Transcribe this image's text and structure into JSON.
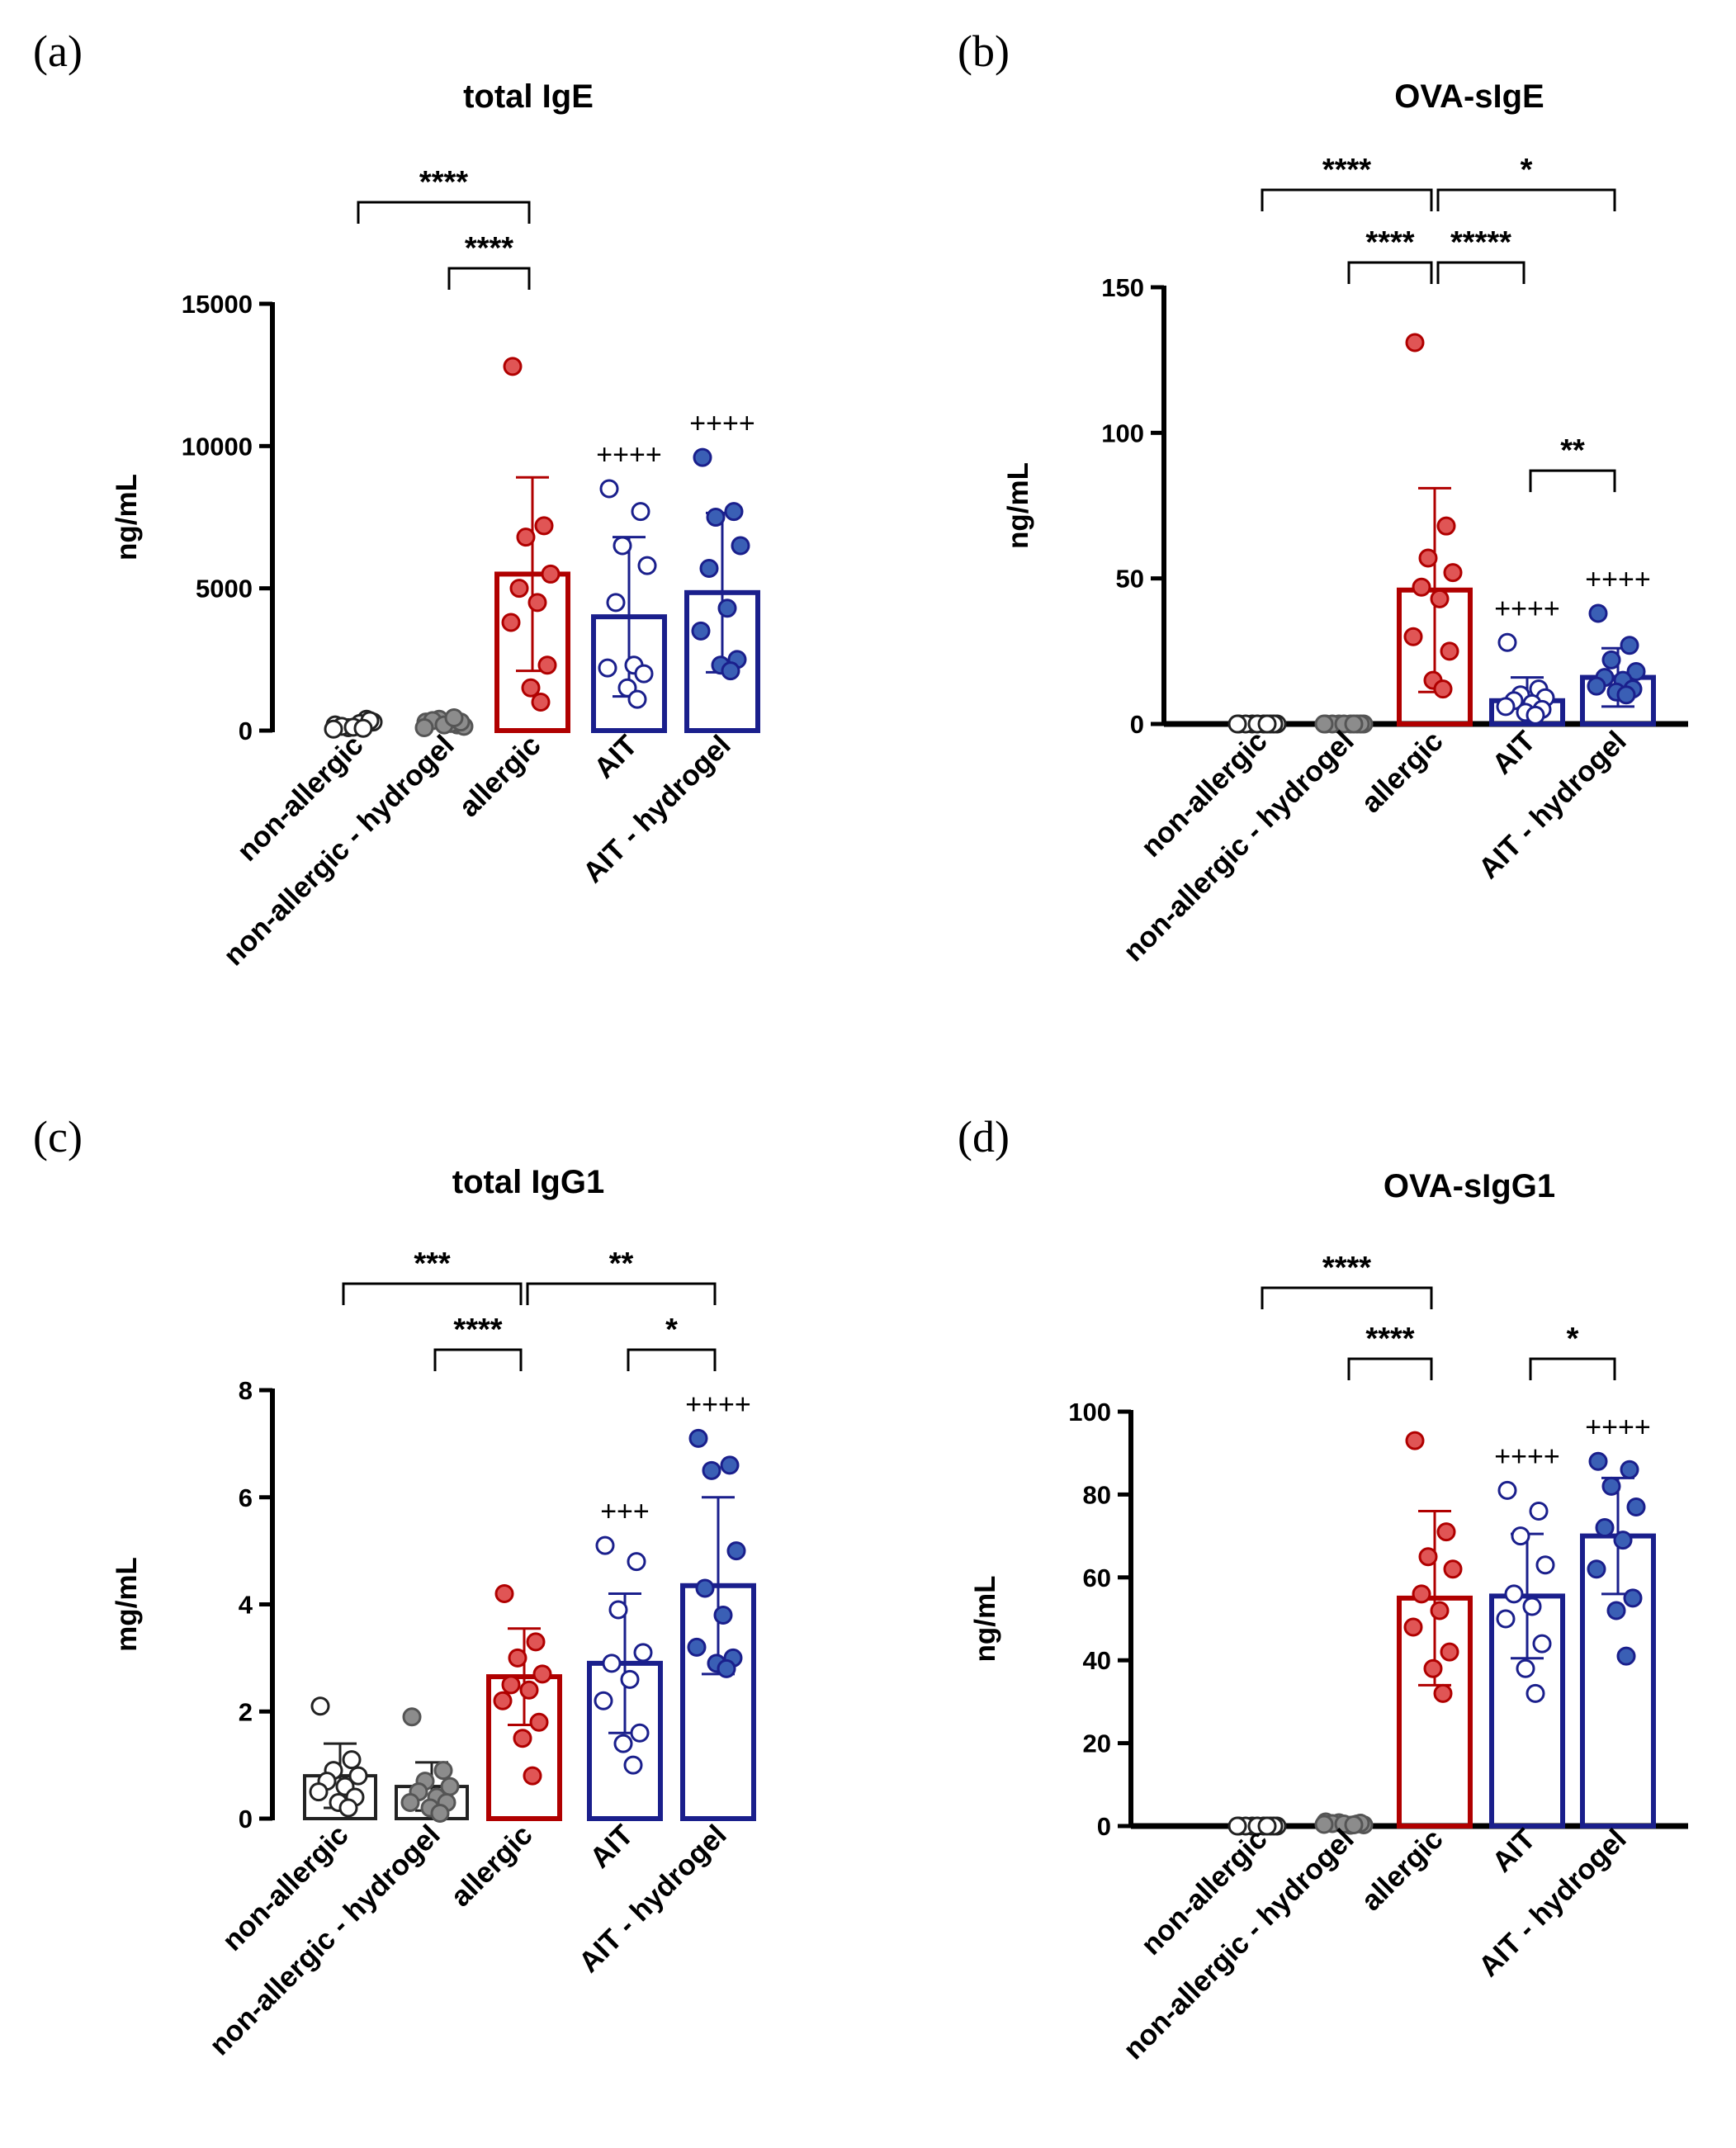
{
  "figure": {
    "categories": [
      "non-allergic",
      "non-allergic - hydrogel",
      "allergic",
      "AIT",
      "AIT - hydrogel"
    ],
    "colors": {
      "non_allergic": "#ffffff",
      "non_allergic_hydrogel": "#8c8c8c",
      "allergic": "#b00000",
      "allergic_point": "#e05555",
      "ait": "#1a1f8c",
      "ait_hydrogel_point": "#3a5fb5",
      "axis": "#000000"
    }
  },
  "chart_data": [
    {
      "panel": "(a)",
      "type": "bar",
      "title": "total IgE",
      "ylabel": "ng/mL",
      "ylim": [
        0,
        15000
      ],
      "yticks": [
        0,
        5000,
        10000,
        15000
      ],
      "categories": [
        "non-allergic",
        "non-allergic - hydrogel",
        "allergic",
        "AIT",
        "AIT - hydrogel"
      ],
      "bars": [
        null,
        null,
        5500,
        4000,
        4850
      ],
      "errors": [
        null,
        null,
        3400,
        2800,
        2800
      ],
      "points": [
        [
          200,
          400,
          100,
          300,
          150,
          250,
          50,
          350,
          120,
          80
        ],
        [
          300,
          200,
          400,
          150,
          350,
          250,
          100,
          300,
          200,
          450
        ],
        [
          12800,
          7200,
          6800,
          5500,
          5000,
          4500,
          3800,
          2300,
          1500,
          1000
        ],
        [
          8500,
          7700,
          6500,
          5800,
          4500,
          2300,
          2200,
          2000,
          1500,
          1100
        ],
        [
          9600,
          7700,
          7500,
          6500,
          5700,
          4300,
          3500,
          2500,
          2300,
          2100
        ]
      ],
      "signs": [
        "",
        "",
        "",
        "++++",
        "++++"
      ],
      "brackets": [
        {
          "from": 0,
          "to": 2,
          "label": "****",
          "level": 2
        },
        {
          "from": 1,
          "to": 2,
          "label": "****",
          "level": 1
        }
      ]
    },
    {
      "panel": "(b)",
      "type": "bar",
      "title": "OVA-sIgE",
      "ylabel": "ng/mL",
      "ylim": [
        0,
        150
      ],
      "yticks": [
        0,
        50,
        100,
        150
      ],
      "categories": [
        "non-allergic",
        "non-allergic - hydrogel",
        "allergic",
        "AIT",
        "AIT - hydrogel"
      ],
      "bars": [
        null,
        null,
        46,
        8,
        16
      ],
      "errors": [
        null,
        null,
        35,
        8,
        10
      ],
      "points": [
        [
          0,
          0,
          0,
          0,
          0,
          0,
          0,
          0,
          0,
          0
        ],
        [
          0,
          0,
          0,
          0,
          0,
          0,
          0,
          0,
          0,
          0
        ],
        [
          131,
          68,
          57,
          52,
          47,
          43,
          30,
          25,
          15,
          12
        ],
        [
          28,
          12,
          10,
          9,
          8,
          7,
          6,
          5,
          4,
          3
        ],
        [
          38,
          27,
          22,
          18,
          16,
          15,
          13,
          12,
          11,
          10
        ]
      ],
      "signs": [
        "",
        "",
        "",
        "++++",
        "++++"
      ],
      "brackets": [
        {
          "from": 0,
          "to": 2,
          "label": "****",
          "level": 3
        },
        {
          "from": 2,
          "to": 4,
          "label": "*",
          "level": 3
        },
        {
          "from": 1,
          "to": 2,
          "label": "****",
          "level": 2
        },
        {
          "from": 2,
          "to": 3,
          "label": "*****",
          "level": 2
        },
        {
          "from": 3,
          "to": 4,
          "label": "**",
          "level": 0
        }
      ]
    },
    {
      "panel": "(c)",
      "type": "bar",
      "title": "total IgG1",
      "ylabel": "mg/mL",
      "ylim": [
        0,
        8
      ],
      "yticks": [
        0,
        2,
        4,
        6,
        8
      ],
      "categories": [
        "non-allergic",
        "non-allergic - hydrogel",
        "allergic",
        "AIT",
        "AIT - hydrogel"
      ],
      "bars": [
        0.8,
        0.6,
        2.65,
        2.9,
        4.35
      ],
      "errors": [
        0.6,
        0.45,
        0.9,
        1.3,
        1.65
      ],
      "points": [
        [
          2.1,
          1.1,
          0.9,
          0.8,
          0.7,
          0.6,
          0.5,
          0.4,
          0.3,
          0.2
        ],
        [
          1.9,
          0.9,
          0.7,
          0.6,
          0.5,
          0.4,
          0.3,
          0.3,
          0.2,
          0.1
        ],
        [
          4.2,
          3.3,
          3.0,
          2.7,
          2.5,
          2.4,
          2.2,
          1.8,
          1.5,
          0.8
        ],
        [
          5.1,
          4.8,
          3.9,
          3.1,
          2.9,
          2.6,
          2.2,
          1.6,
          1.4,
          1.0
        ],
        [
          7.1,
          6.6,
          6.5,
          5.0,
          4.3,
          3.8,
          3.2,
          3.0,
          2.9,
          2.8
        ]
      ],
      "signs": [
        "",
        "",
        "",
        "+++",
        "++++"
      ],
      "brackets": [
        {
          "from": 0,
          "to": 2,
          "label": "***",
          "level": 2
        },
        {
          "from": 2,
          "to": 4,
          "label": "**",
          "level": 2
        },
        {
          "from": 1,
          "to": 2,
          "label": "****",
          "level": 1
        },
        {
          "from": 3,
          "to": 4,
          "label": "*",
          "level": 1
        }
      ]
    },
    {
      "panel": "(d)",
      "type": "bar",
      "title": "OVA-sIgG1",
      "ylabel": "ng/mL",
      "ylim": [
        0,
        100
      ],
      "yticks": [
        0,
        20,
        40,
        60,
        80,
        100
      ],
      "categories": [
        "non-allergic",
        "non-allergic - hydrogel",
        "allergic",
        "AIT",
        "AIT - hydrogel"
      ],
      "bars": [
        0,
        0,
        55,
        55.5,
        70
      ],
      "errors": [
        null,
        null,
        21,
        15,
        14
      ],
      "points": [
        [
          0,
          0,
          0,
          0,
          0,
          0,
          0,
          0,
          0,
          0
        ],
        [
          1,
          0.5,
          0.8,
          0.3,
          0.6,
          0.2,
          0.4,
          0.7,
          0.5,
          0.3
        ],
        [
          93,
          71,
          65,
          62,
          56,
          52,
          48,
          42,
          38,
          32
        ],
        [
          81,
          76,
          70,
          63,
          56,
          53,
          50,
          44,
          38,
          32
        ],
        [
          88,
          86,
          82,
          77,
          72,
          69,
          62,
          55,
          52,
          41
        ]
      ],
      "signs": [
        "",
        "",
        "",
        "++++",
        "++++"
      ],
      "brackets": [
        {
          "from": 0,
          "to": 2,
          "label": "****",
          "level": 2
        },
        {
          "from": 1,
          "to": 2,
          "label": "****",
          "level": 1
        },
        {
          "from": 3,
          "to": 4,
          "label": "*",
          "level": 1
        }
      ]
    }
  ]
}
